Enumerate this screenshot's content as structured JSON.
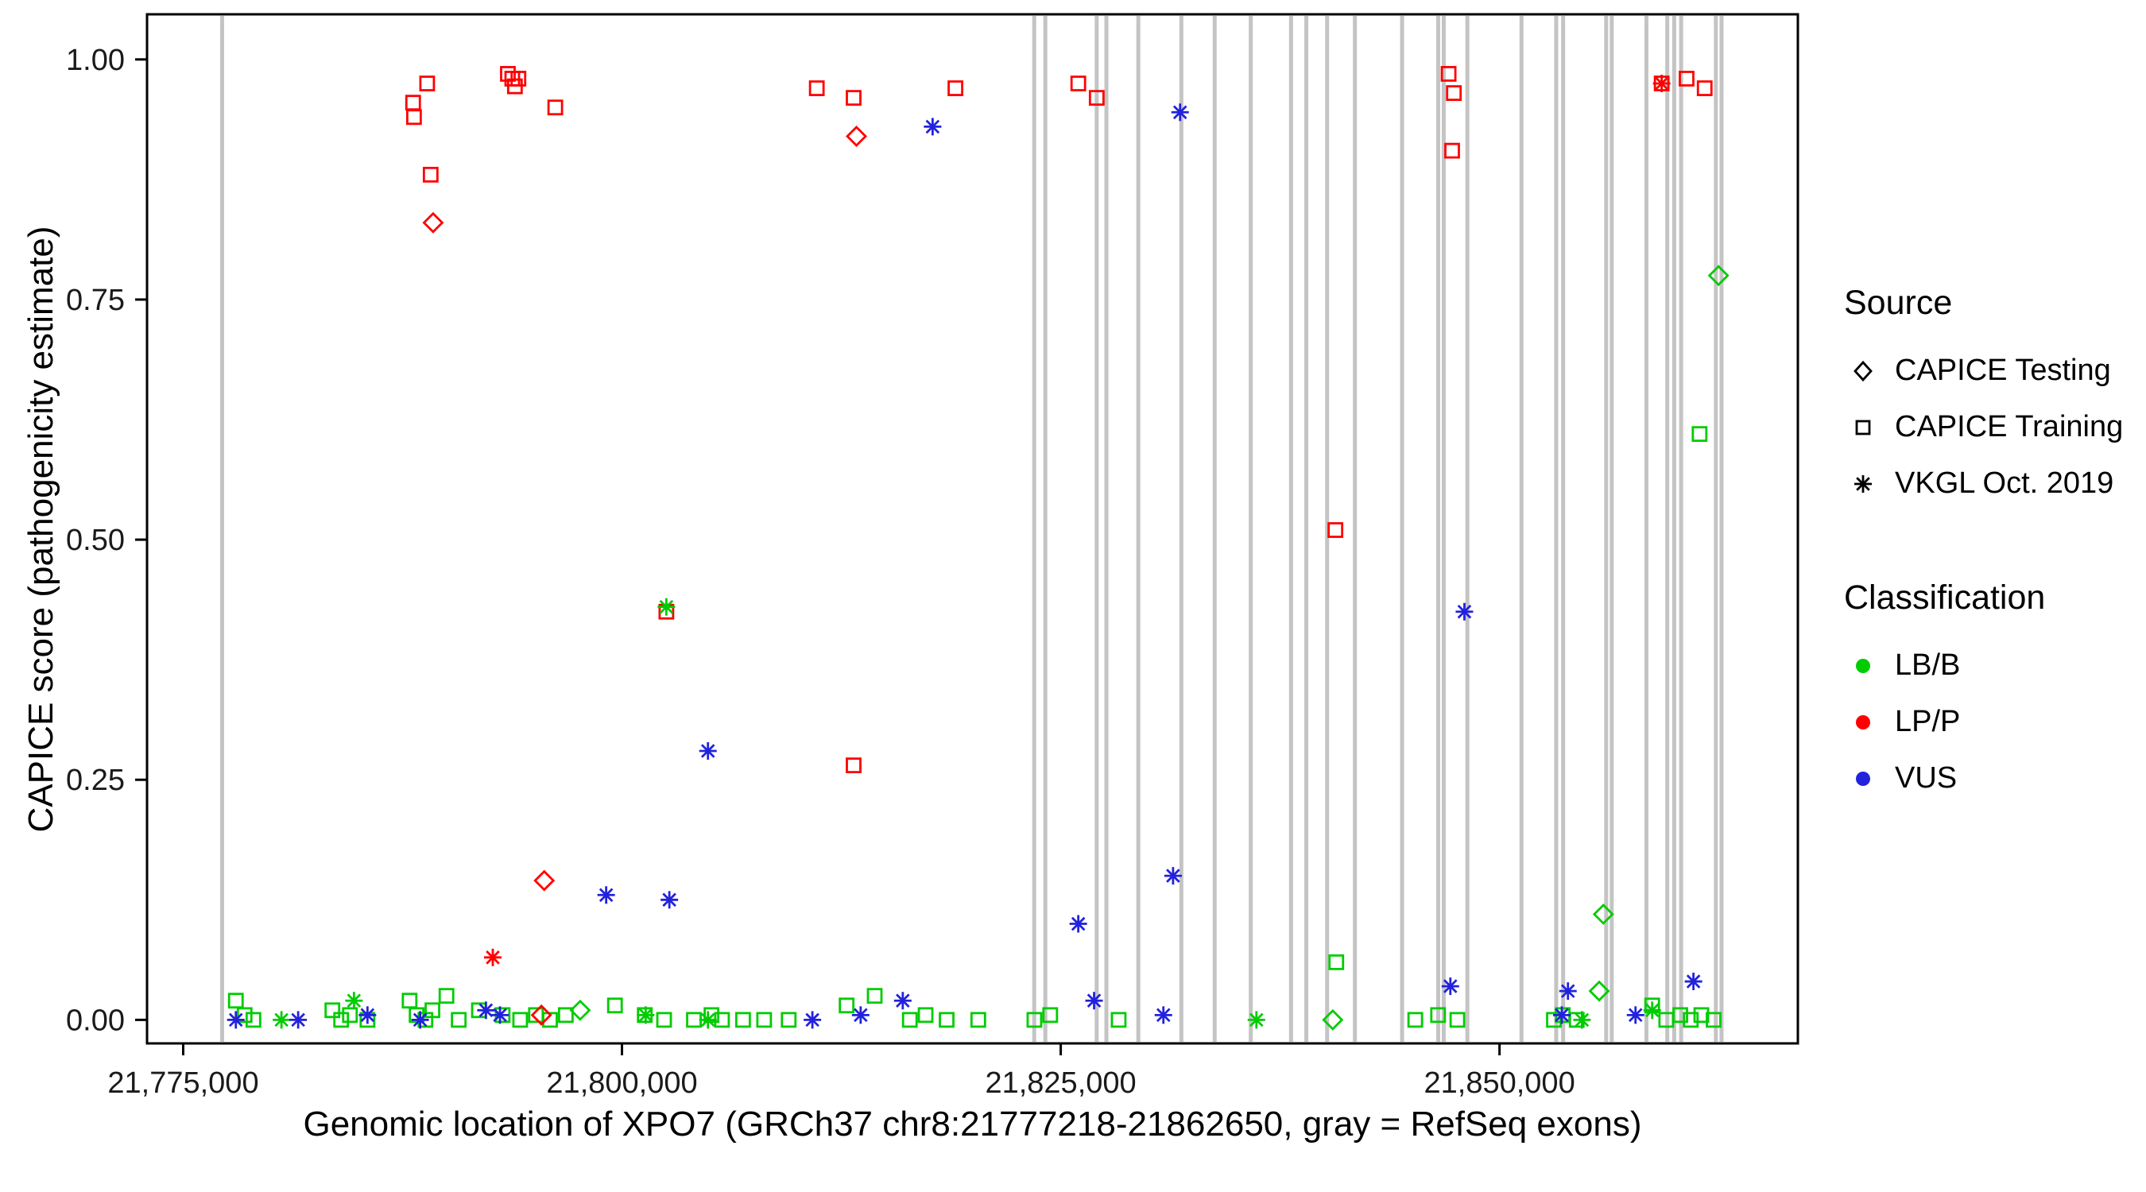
{
  "chart_data": {
    "type": "scatter",
    "title": "",
    "xlabel": "Genomic location of XPO7 (GRCh37 chr8:21777218-21862650, gray = RefSeq exons)",
    "ylabel": "CAPICE score (pathogenicity estimate)",
    "grid": false,
    "legend_position": "right",
    "xlim": [
      21772940,
      21867000
    ],
    "ylim": [
      -0.0245,
      1.047
    ],
    "x_ticks": [
      {
        "value": 21775000,
        "label": "21,775,000"
      },
      {
        "value": 21800000,
        "label": "21,800,000"
      },
      {
        "value": 21825000,
        "label": "21,825,000"
      },
      {
        "value": 21850000,
        "label": "21,850,000"
      }
    ],
    "y_ticks": [
      {
        "value": 0.0,
        "label": "0.00"
      },
      {
        "value": 0.25,
        "label": "0.25"
      },
      {
        "value": 0.5,
        "label": "0.50"
      },
      {
        "value": 0.75,
        "label": "0.75"
      },
      {
        "value": 1.0,
        "label": "1.00"
      }
    ],
    "legend": {
      "source_title": "Source",
      "classification_title": "Classification"
    },
    "sources": [
      {
        "name": "CAPICE Testing",
        "marker": "diamond"
      },
      {
        "name": "CAPICE Training",
        "marker": "square"
      },
      {
        "name": "VKGL Oct. 2019",
        "marker": "asterisk"
      }
    ],
    "classifications": [
      {
        "name": "LB/B",
        "color": "#00CC00"
      },
      {
        "name": "LP/P",
        "color": "#FF0000"
      },
      {
        "name": "VUS",
        "color": "#2222DD"
      }
    ],
    "exon_color": "#C4C4C4",
    "exons": [
      21777218,
      21823489,
      21824122,
      21827048,
      21827602,
      21829421,
      21831873,
      21833772,
      21835828,
      21838122,
      21838992,
      21840179,
      21841761,
      21844450,
      21846507,
      21846823,
      21848168,
      21851253,
      21853230,
      21853626,
      21856078,
      21856394,
      21858371,
      21859558,
      21859953,
      21860349,
      21862326,
      21862650
    ],
    "series": [
      {
        "source": "CAPICE Training",
        "classification": "LP/P",
        "points": [
          [
            21788100,
            0.955
          ],
          [
            21788150,
            0.94
          ],
          [
            21788900,
            0.975
          ],
          [
            21789100,
            0.88
          ],
          [
            21793500,
            0.985
          ],
          [
            21793750,
            0.98
          ],
          [
            21794100,
            0.98
          ],
          [
            21793900,
            0.972
          ],
          [
            21796200,
            0.95
          ],
          [
            21802530,
            0.425
          ],
          [
            21811100,
            0.97
          ],
          [
            21813200,
            0.96
          ],
          [
            21813200,
            0.265
          ],
          [
            21819000,
            0.97
          ],
          [
            21826000,
            0.975
          ],
          [
            21827050,
            0.96
          ],
          [
            21840650,
            0.51
          ],
          [
            21847100,
            0.985
          ],
          [
            21847400,
            0.965
          ],
          [
            21847300,
            0.905
          ],
          [
            21859240,
            0.975
          ],
          [
            21860660,
            0.98
          ],
          [
            21861690,
            0.97
          ]
        ]
      },
      {
        "source": "CAPICE Training",
        "classification": "LB/B",
        "points": [
          [
            21778000,
            0.02
          ],
          [
            21778500,
            0.005
          ],
          [
            21779000,
            0.0
          ],
          [
            21783500,
            0.01
          ],
          [
            21784000,
            0.0
          ],
          [
            21784500,
            0.005
          ],
          [
            21785500,
            0.0
          ],
          [
            21787900,
            0.02
          ],
          [
            21788300,
            0.005
          ],
          [
            21788800,
            0.0
          ],
          [
            21789200,
            0.01
          ],
          [
            21790000,
            0.025
          ],
          [
            21790700,
            0.0
          ],
          [
            21791850,
            0.01
          ],
          [
            21793200,
            0.005
          ],
          [
            21794200,
            0.0
          ],
          [
            21795100,
            0.005
          ],
          [
            21795900,
            0.0
          ],
          [
            21796800,
            0.005
          ],
          [
            21799600,
            0.015
          ],
          [
            21801300,
            0.005
          ],
          [
            21802400,
            0.0
          ],
          [
            21804100,
            0.0
          ],
          [
            21805100,
            0.005
          ],
          [
            21805700,
            0.0
          ],
          [
            21806900,
            0.0
          ],
          [
            21808100,
            0.0
          ],
          [
            21809500,
            0.0
          ],
          [
            21812800,
            0.015
          ],
          [
            21814400,
            0.025
          ],
          [
            21816400,
            0.0
          ],
          [
            21817300,
            0.005
          ],
          [
            21818500,
            0.0
          ],
          [
            21820300,
            0.0
          ],
          [
            21823500,
            0.0
          ],
          [
            21824400,
            0.005
          ],
          [
            21828300,
            0.0
          ],
          [
            21840700,
            0.06
          ],
          [
            21845200,
            0.0
          ],
          [
            21846500,
            0.005
          ],
          [
            21847600,
            0.0
          ],
          [
            21853100,
            0.0
          ],
          [
            21853600,
            0.005
          ],
          [
            21854400,
            0.0
          ],
          [
            21858700,
            0.015
          ],
          [
            21859500,
            0.0
          ],
          [
            21860300,
            0.005
          ],
          [
            21860900,
            0.0
          ],
          [
            21861400,
            0.61
          ],
          [
            21861500,
            0.005
          ],
          [
            21862200,
            0.0
          ]
        ]
      },
      {
        "source": "CAPICE Testing",
        "classification": "LP/P",
        "points": [
          [
            21789240,
            0.83
          ],
          [
            21813360,
            0.92
          ],
          [
            21795570,
            0.145
          ],
          [
            21795410,
            0.005
          ]
        ]
      },
      {
        "source": "CAPICE Testing",
        "classification": "LB/B",
        "points": [
          [
            21862480,
            0.775
          ],
          [
            21855920,
            0.11
          ],
          [
            21855680,
            0.03
          ],
          [
            21840500,
            0.0
          ],
          [
            21797620,
            0.01
          ]
        ]
      },
      {
        "source": "VKGL Oct. 2019",
        "classification": "LP/P",
        "points": [
          [
            21792640,
            0.065
          ],
          [
            21859240,
            0.975
          ]
        ]
      },
      {
        "source": "VKGL Oct. 2019",
        "classification": "LB/B",
        "points": [
          [
            21802530,
            0.43
          ],
          [
            21784730,
            0.02
          ],
          [
            21780600,
            0.0
          ],
          [
            21801350,
            0.005
          ],
          [
            21804900,
            0.0
          ],
          [
            21836150,
            0.0
          ],
          [
            21854700,
            0.0
          ],
          [
            21858700,
            0.01
          ]
        ]
      },
      {
        "source": "VKGL Oct. 2019",
        "classification": "VUS",
        "points": [
          [
            21817700,
            0.93
          ],
          [
            21831800,
            0.945
          ],
          [
            21804900,
            0.28
          ],
          [
            21799100,
            0.13
          ],
          [
            21802700,
            0.125
          ],
          [
            21826000,
            0.1
          ],
          [
            21831400,
            0.15
          ],
          [
            21848000,
            0.425
          ],
          [
            21847200,
            0.035
          ],
          [
            21853900,
            0.03
          ],
          [
            21861050,
            0.04
          ],
          [
            21826900,
            0.02
          ],
          [
            21816000,
            0.02
          ],
          [
            21778000,
            0.0
          ],
          [
            21781550,
            0.0
          ],
          [
            21785500,
            0.005
          ],
          [
            21792250,
            0.01
          ],
          [
            21793050,
            0.005
          ],
          [
            21810850,
            0.0
          ],
          [
            21813600,
            0.005
          ],
          [
            21830850,
            0.005
          ],
          [
            21853550,
            0.005
          ],
          [
            21857750,
            0.005
          ],
          [
            21788500,
            0.0
          ]
        ]
      }
    ]
  }
}
